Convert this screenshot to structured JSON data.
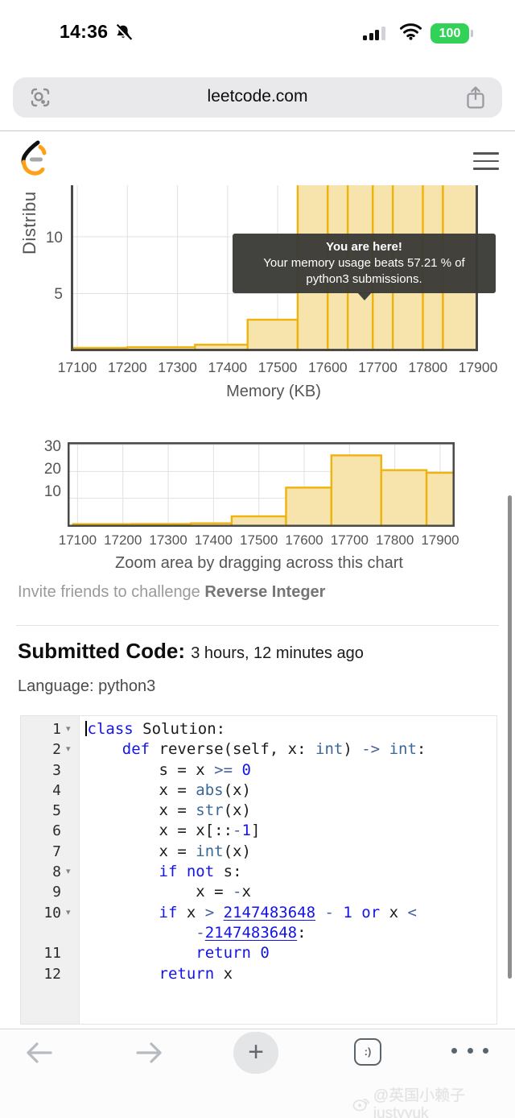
{
  "status_bar": {
    "time": "14:36",
    "battery_percent": "100"
  },
  "url_bar": {
    "url": "leetcode.com"
  },
  "tooltip": {
    "line1": "You are here!",
    "line2": "Your memory usage beats 57.21 % of",
    "line3": "python3 submissions."
  },
  "chart_data": [
    {
      "type": "bar",
      "name": "memory-distribution-detail",
      "ylabel_visible": "Distribu",
      "xlabel": "Memory (KB)",
      "x_ticks": [
        17100,
        17200,
        17300,
        17400,
        17500,
        17600,
        17700,
        17800,
        17900
      ],
      "y_ticks": [
        5,
        10
      ],
      "xlim": [
        17087,
        17900
      ],
      "ylim_visible": [
        0,
        14.6
      ],
      "grid": true,
      "bars": [
        {
          "x0": 17090,
          "x1": 17200,
          "v": 0.22
        },
        {
          "x0": 17200,
          "x1": 17335,
          "v": 0.28
        },
        {
          "x0": 17335,
          "x1": 17440,
          "v": 0.5
        },
        {
          "x0": 17440,
          "x1": 17540,
          "v": 2.7
        },
        {
          "x0": 17540,
          "x1": 17600,
          "v": 16
        },
        {
          "x0": 17600,
          "x1": 17640,
          "v": 18
        },
        {
          "x0": 17640,
          "x1": 17690,
          "v": 26
        },
        {
          "x0": 17690,
          "x1": 17730,
          "v": 24
        },
        {
          "x0": 17730,
          "x1": 17790,
          "v": 25
        },
        {
          "x0": 17790,
          "x1": 17830,
          "v": 22
        },
        {
          "x0": 17830,
          "x1": 17900,
          "v": 20
        }
      ]
    },
    {
      "type": "bar",
      "name": "memory-distribution-overview",
      "caption": "Zoom area by dragging across this chart",
      "x_ticks": [
        17100,
        17200,
        17300,
        17400,
        17500,
        17600,
        17700,
        17800,
        17900
      ],
      "y_ticks": [
        10,
        20,
        30
      ],
      "xlim": [
        17078,
        17932
      ],
      "ylim": [
        0,
        31.5
      ],
      "grid": true,
      "bars": [
        {
          "x0": 17090,
          "x1": 17220,
          "v": 0.4
        },
        {
          "x0": 17220,
          "x1": 17350,
          "v": 0.45
        },
        {
          "x0": 17350,
          "x1": 17440,
          "v": 0.7
        },
        {
          "x0": 17440,
          "x1": 17560,
          "v": 3.3
        },
        {
          "x0": 17560,
          "x1": 17660,
          "v": 14
        },
        {
          "x0": 17660,
          "x1": 17770,
          "v": 26
        },
        {
          "x0": 17770,
          "x1": 17870,
          "v": 20.5
        },
        {
          "x0": 17870,
          "x1": 17932,
          "v": 19.5
        }
      ]
    }
  ],
  "invite": {
    "prefix": "Invite friends to challenge ",
    "problem": "Reverse Integer"
  },
  "submitted": {
    "title": "Submitted Code:",
    "time_ago": "3 hours, 12 minutes ago",
    "language": "Language: python3"
  },
  "code": {
    "lines": [
      {
        "num": "1",
        "fold": true,
        "cursor": true,
        "segs": [
          [
            "kw",
            "class"
          ],
          [
            "pl",
            " Solution:"
          ]
        ]
      },
      {
        "num": "2",
        "fold": true,
        "segs": [
          [
            "pl",
            "    "
          ],
          [
            "kw",
            "def"
          ],
          [
            "pl",
            " reverse(self, x: "
          ],
          [
            "bi",
            "int"
          ],
          [
            "pl",
            ") "
          ],
          [
            "op",
            "->"
          ],
          [
            "pl",
            " "
          ],
          [
            "bi",
            "int"
          ],
          [
            "pl",
            ":"
          ]
        ]
      },
      {
        "num": "3",
        "segs": [
          [
            "pl",
            "        s = x "
          ],
          [
            "op",
            ">="
          ],
          [
            "pl",
            " "
          ],
          [
            "num",
            "0"
          ]
        ]
      },
      {
        "num": "4",
        "segs": [
          [
            "pl",
            "        x = "
          ],
          [
            "bi",
            "abs"
          ],
          [
            "pl",
            "(x)"
          ]
        ]
      },
      {
        "num": "5",
        "segs": [
          [
            "pl",
            "        x = "
          ],
          [
            "bi",
            "str"
          ],
          [
            "pl",
            "(x)"
          ]
        ]
      },
      {
        "num": "6",
        "segs": [
          [
            "pl",
            "        x = x[::"
          ],
          [
            "op",
            "-"
          ],
          [
            "num",
            "1"
          ],
          [
            "pl",
            "]"
          ]
        ]
      },
      {
        "num": "7",
        "segs": [
          [
            "pl",
            "        x = "
          ],
          [
            "bi",
            "int"
          ],
          [
            "pl",
            "(x)"
          ]
        ]
      },
      {
        "num": "8",
        "fold": true,
        "segs": [
          [
            "pl",
            "        "
          ],
          [
            "kw",
            "if"
          ],
          [
            "pl",
            " "
          ],
          [
            "kw",
            "not"
          ],
          [
            "pl",
            " s:"
          ]
        ]
      },
      {
        "num": "9",
        "segs": [
          [
            "pl",
            "            x = "
          ],
          [
            "op",
            "-"
          ],
          [
            "pl",
            "x"
          ]
        ]
      },
      {
        "num": "10",
        "fold": true,
        "segs": [
          [
            "pl",
            "        "
          ],
          [
            "kw",
            "if"
          ],
          [
            "pl",
            " x "
          ],
          [
            "op",
            ">"
          ],
          [
            "pl",
            " "
          ],
          [
            "numu",
            "2147483648"
          ],
          [
            "pl",
            " "
          ],
          [
            "op",
            "-"
          ],
          [
            "pl",
            " "
          ],
          [
            "num",
            "1"
          ],
          [
            "pl",
            " "
          ],
          [
            "kw",
            "or"
          ],
          [
            "pl",
            " x "
          ],
          [
            "op",
            "<"
          ]
        ]
      },
      {
        "num": "",
        "segs": [
          [
            "pl",
            "            "
          ],
          [
            "op",
            "-"
          ],
          [
            "numu",
            "2147483648"
          ],
          [
            "pl",
            ":"
          ]
        ]
      },
      {
        "num": "11",
        "segs": [
          [
            "pl",
            "            "
          ],
          [
            "kw",
            "return"
          ],
          [
            "pl",
            " "
          ],
          [
            "num",
            "0"
          ]
        ]
      },
      {
        "num": "12",
        "segs": [
          [
            "pl",
            "        "
          ],
          [
            "kw",
            "return"
          ],
          [
            "pl",
            " x"
          ]
        ]
      }
    ]
  },
  "toolbar": {
    "tab_button_label": ":)"
  },
  "watermark": {
    "text": "@英国小赖子justyyuk"
  },
  "colors": {
    "bar_fill": "#f7e4ac",
    "bar_stroke": "#efb30e",
    "axis": "#4a4a4a",
    "grid": "#e0e0e0",
    "battery_green": "#32d158",
    "leetcode_orange": "#ffa116"
  }
}
